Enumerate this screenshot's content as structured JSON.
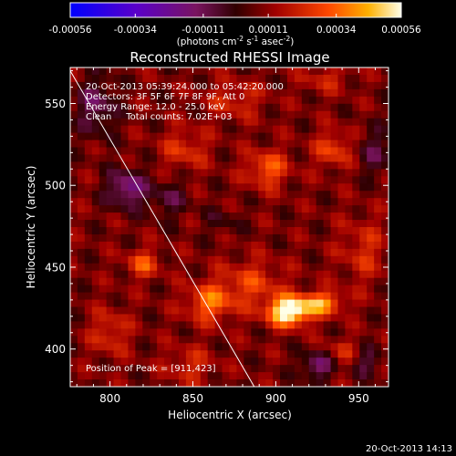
{
  "chart_data": {
    "type": "heatmap",
    "title": "Reconstructed RHESSI Image",
    "xlabel": "Heliocentric X (arcsec)",
    "ylabel": "Heliocentric Y (arcsec)",
    "xlim": [
      776,
      968
    ],
    "ylim": [
      377,
      572
    ],
    "xticks": [
      800,
      850,
      900,
      950
    ],
    "yticks": [
      400,
      450,
      500,
      550
    ],
    "x_tick_labels": [
      "800",
      "850",
      "900",
      "950"
    ],
    "y_tick_labels": [
      "400",
      "450",
      "500",
      "550"
    ],
    "colorbar": {
      "range": [
        -0.00056,
        0.00056
      ],
      "tick_labels": [
        "-0.00056",
        "-0.00034",
        "-0.00011",
        "0.00011",
        "0.00034",
        "0.00056"
      ],
      "unit_prefix": "(photons cm",
      "unit_exp1": "-2",
      "unit_mid": " s",
      "unit_exp2": "-1",
      "unit_mid2": " asec",
      "unit_exp3": "-2",
      "unit_suffix": ")"
    },
    "annotations": [
      "20-Oct-2013 05:39:24.000 to 05:42:20.000",
      "Detectors: 3F 5F 6F 7F 8F 9F, Att 0",
      "Energy Range: 12.0 - 25.0 keV",
      "Clean     Total counts: 7.02E+03"
    ],
    "peak_label": "Position of Peak = [911,423]",
    "peak": [
      911,
      423
    ],
    "limb_line": [
      [
        776,
        570
      ],
      [
        887,
        377
      ]
    ],
    "timestamp": "20-Oct-2013 14:13",
    "sources": [
      {
        "x": 908,
        "y": 423,
        "amp": 0.00056,
        "sx": 9,
        "sy": 6
      },
      {
        "x": 928,
        "y": 428,
        "amp": 0.00032,
        "sx": 9,
        "sy": 5
      },
      {
        "x": 860,
        "y": 428,
        "amp": 0.00026,
        "sx": 10,
        "sy": 8
      },
      {
        "x": 885,
        "y": 440,
        "amp": 0.00018,
        "sx": 14,
        "sy": 10
      },
      {
        "x": 895,
        "y": 510,
        "amp": 0.00024,
        "sx": 9,
        "sy": 8
      },
      {
        "x": 935,
        "y": 522,
        "amp": 0.0002,
        "sx": 8,
        "sy": 8
      },
      {
        "x": 820,
        "y": 452,
        "amp": 0.00022,
        "sx": 7,
        "sy": 6
      },
      {
        "x": 845,
        "y": 522,
        "amp": 0.00016,
        "sx": 10,
        "sy": 9
      },
      {
        "x": 953,
        "y": 460,
        "amp": 0.00014,
        "sx": 10,
        "sy": 14
      },
      {
        "x": 875,
        "y": 552,
        "amp": 0.00014,
        "sx": 12,
        "sy": 8
      },
      {
        "x": 930,
        "y": 565,
        "amp": 0.00012,
        "sx": 10,
        "sy": 6
      },
      {
        "x": 800,
        "y": 410,
        "amp": 0.00016,
        "sx": 8,
        "sy": 10
      },
      {
        "x": 848,
        "y": 390,
        "amp": 0.00014,
        "sx": 10,
        "sy": 8
      },
      {
        "x": 940,
        "y": 398,
        "amp": 0.00012,
        "sx": 8,
        "sy": 6
      },
      {
        "x": 810,
        "y": 498,
        "amp": -0.00028,
        "sx": 8,
        "sy": 8
      },
      {
        "x": 792,
        "y": 548,
        "amp": -0.0002,
        "sx": 8,
        "sy": 12
      },
      {
        "x": 835,
        "y": 492,
        "amp": -0.00014,
        "sx": 8,
        "sy": 8
      },
      {
        "x": 925,
        "y": 390,
        "amp": -0.00024,
        "sx": 7,
        "sy": 6
      },
      {
        "x": 955,
        "y": 392,
        "amp": -0.00016,
        "sx": 6,
        "sy": 6
      },
      {
        "x": 960,
        "y": 520,
        "amp": -0.00014,
        "sx": 8,
        "sy": 10
      },
      {
        "x": 868,
        "y": 478,
        "amp": -8e-05,
        "sx": 8,
        "sy": 6
      }
    ]
  }
}
